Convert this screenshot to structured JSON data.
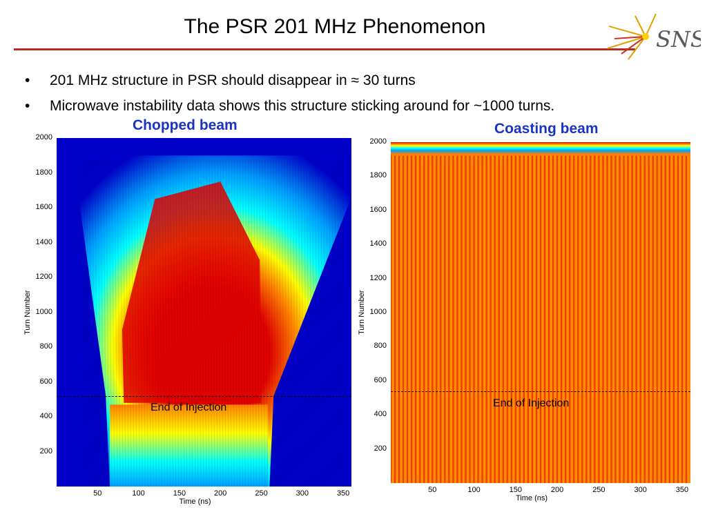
{
  "slide": {
    "title": "The PSR 201 MHz Phenomenon",
    "logo_text": "SNS",
    "bullets": [
      "201 MHz structure in PSR should disappear in ≈ 30 turns",
      "Microwave instability data shows this structure sticking around for ~1000 turns."
    ]
  },
  "chart_data": [
    {
      "type": "heatmap",
      "title": "Chopped beam",
      "xlabel": "Time (ns)",
      "ylabel": "Turn Number",
      "xlim": [
        0,
        360
      ],
      "ylim": [
        0,
        2000
      ],
      "xticks": [
        "50",
        "100",
        "150",
        "200",
        "250",
        "300",
        "350"
      ],
      "yticks": [
        "200",
        "400",
        "600",
        "800",
        "1000",
        "1200",
        "1400",
        "1600",
        "1800",
        "2000"
      ],
      "annotation": {
        "text": "End of Injection",
        "turn": 520
      },
      "colormap": [
        "#0000c8",
        "#00a0ff",
        "#00ffff",
        "#ffff00",
        "#ff8000",
        "#e00000"
      ]
    },
    {
      "type": "heatmap",
      "title": "Coasting beam",
      "xlabel": "Time (ns)",
      "ylabel": "Turn Number",
      "xlim": [
        0,
        360
      ],
      "ylim": [
        0,
        2000
      ],
      "xticks": [
        "50",
        "100",
        "150",
        "200",
        "250",
        "300",
        "350"
      ],
      "yticks": [
        "200",
        "400",
        "600",
        "800",
        "1000",
        "1200",
        "1400",
        "1600",
        "1800",
        "2000"
      ],
      "annotation": {
        "text": "End of Injection",
        "turn": 540
      },
      "colormap": [
        "#0000c8",
        "#00a0ff",
        "#00ffff",
        "#ffff00",
        "#ff8000",
        "#e00000"
      ]
    }
  ]
}
